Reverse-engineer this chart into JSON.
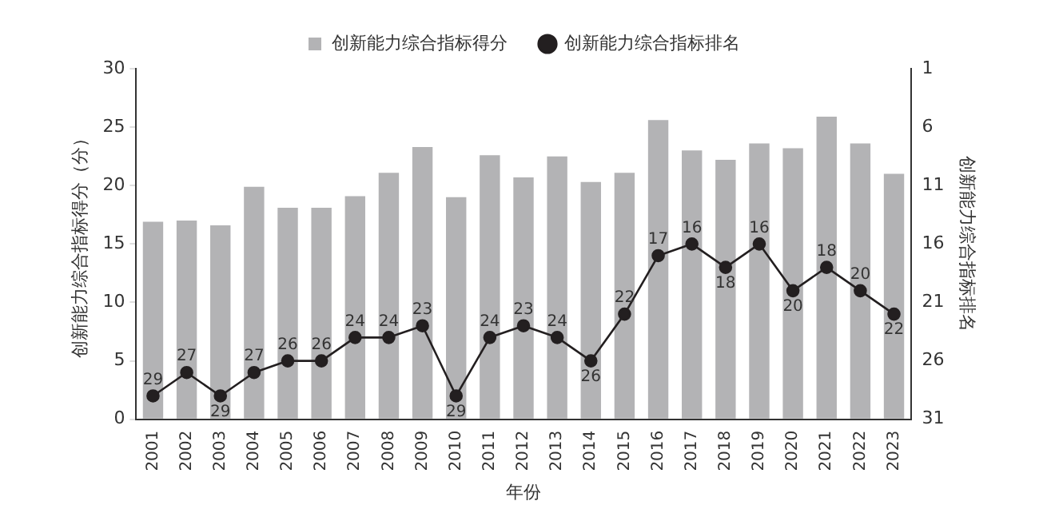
{
  "chart_data": {
    "type": "bar",
    "xlabel": "年份",
    "ylabel": "创新能力综合指标得分（分）",
    "y2label": "创新能力综合指标排名",
    "categories": [
      "2001",
      "2002",
      "2003",
      "2004",
      "2005",
      "2006",
      "2007",
      "2008",
      "2009",
      "2010",
      "2011",
      "2012",
      "2013",
      "2014",
      "2015",
      "2016",
      "2017",
      "2018",
      "2019",
      "2020",
      "2021",
      "2022",
      "2023"
    ],
    "series": [
      {
        "name": "创新能力综合指标得分",
        "color": "#b3b3b5",
        "values": [
          16.9,
          17.0,
          16.6,
          19.9,
          18.1,
          18.1,
          19.1,
          21.1,
          23.3,
          19.0,
          22.6,
          20.7,
          22.5,
          20.3,
          21.1,
          25.6,
          23.0,
          22.2,
          23.6,
          23.2,
          25.9,
          23.6,
          21.0
        ]
      },
      {
        "name": "创新能力综合指标排名",
        "type": "line",
        "axis": "y2",
        "color": "#231f20",
        "marker": "circle",
        "values": [
          29,
          27,
          29,
          27,
          26,
          26,
          24,
          24,
          23,
          29,
          24,
          23,
          24,
          26,
          22,
          17,
          16,
          18,
          16,
          20,
          18,
          20,
          22
        ],
        "value_labels": [
          "29",
          "27",
          "29",
          "27",
          "26",
          "26",
          "24",
          "24",
          "23",
          "29",
          "24",
          "23",
          "24",
          "26",
          "22",
          "17",
          "16",
          "18",
          "16",
          "20",
          "18",
          "20",
          "22"
        ]
      }
    ],
    "ylim": [
      0,
      30
    ],
    "yticks": [
      0,
      5,
      10,
      15,
      20,
      25,
      30
    ],
    "y2lim": [
      31,
      1
    ],
    "y2ticks": [
      1,
      6,
      11,
      16,
      21,
      26,
      31
    ],
    "legend": "top",
    "grid": false
  }
}
